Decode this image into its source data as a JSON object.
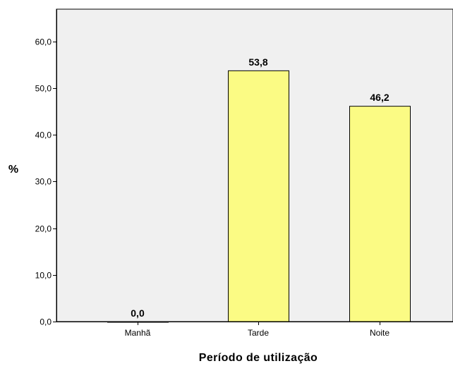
{
  "chart_data": {
    "type": "bar",
    "categories": [
      "Manhã",
      "Tarde",
      "Noite"
    ],
    "values": [
      0.0,
      53.8,
      46.2
    ],
    "data_labels": [
      "0,0",
      "53,8",
      "46,2"
    ],
    "xlabel": "Período de utilização",
    "ylabel": "%",
    "ylim": [
      0,
      66
    ],
    "yticks": [
      0,
      10,
      20,
      30,
      40,
      50,
      60
    ],
    "ytick_labels": [
      "0,0",
      "10,0",
      "20,0",
      "30,0",
      "40,0",
      "50,0",
      "60,0"
    ],
    "grid": false,
    "legend": "none",
    "colors": {
      "plot_background": "#f0f0f0",
      "bar_fill": "#fbfb84",
      "bar_stroke": "#000000",
      "axis": "#000000"
    }
  }
}
